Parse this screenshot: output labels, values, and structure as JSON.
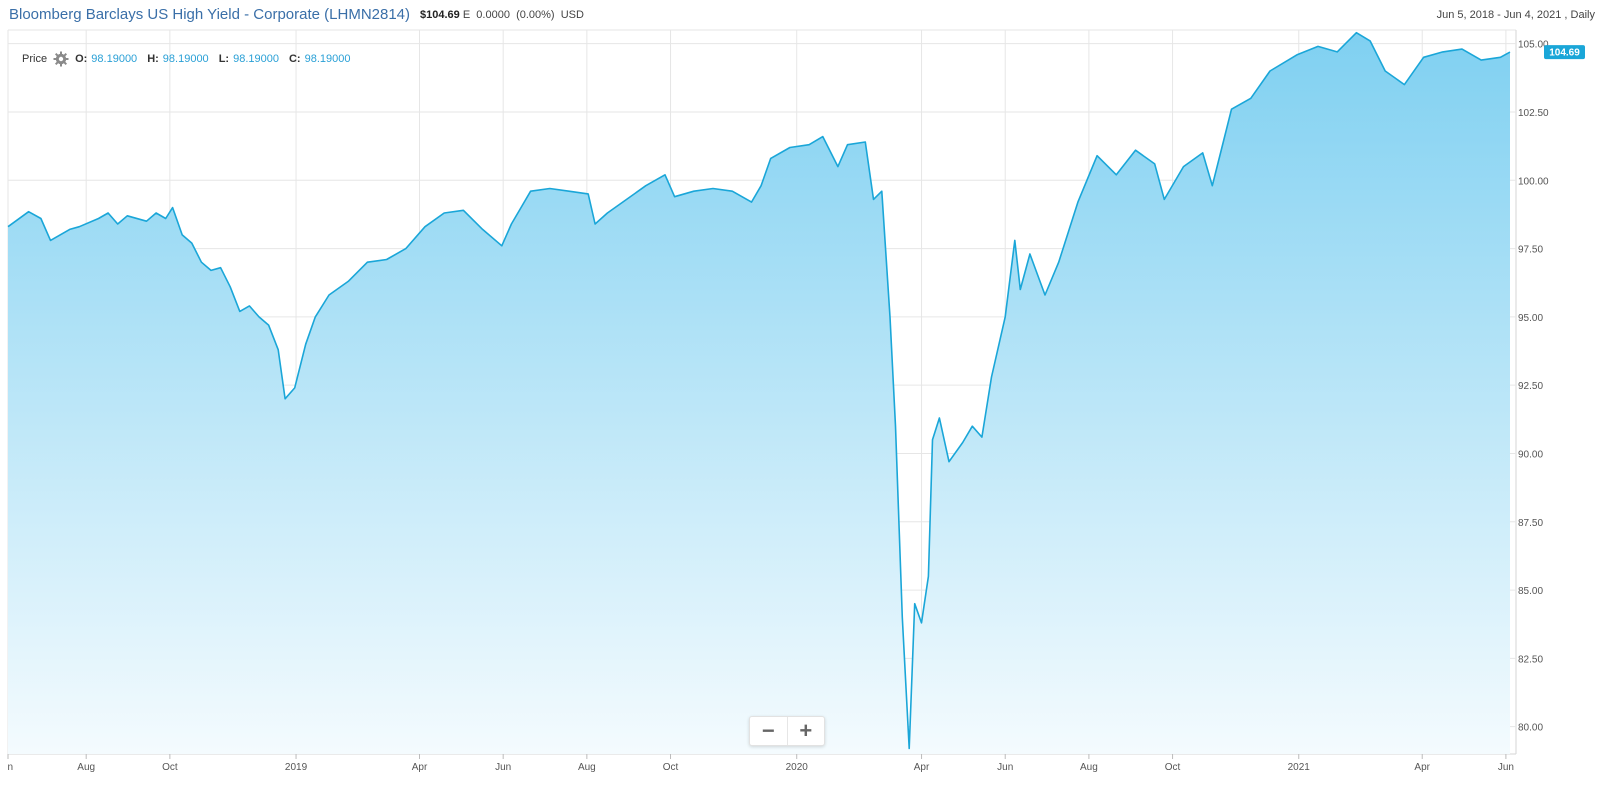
{
  "header": {
    "title": "Bloomberg Barclays US High Yield - Corporate",
    "ticker": "(LHMN2814)",
    "price": "$104.69",
    "price_flag": "E",
    "change": "0.0000",
    "change_pct": "(0.00%)",
    "currency": "USD",
    "date_range": "Jun 5, 2018 - Jun 4, 2021 , Daily"
  },
  "ohlc": {
    "series_label": "Price",
    "open_label": "O:",
    "open": "98.19000",
    "high_label": "H:",
    "high": "98.19000",
    "low_label": "L:",
    "low": "98.19000",
    "close_label": "C:",
    "close": "98.19000",
    "settings_icon": "gear-icon"
  },
  "last_value_label": "104.69",
  "zoom": {
    "out_label": "−",
    "in_label": "+"
  },
  "colors": {
    "line": "#1aa6d8",
    "fill_top": "#7fd0f1",
    "fill_bottom": "#f4fbfe",
    "title": "#3a6fa8",
    "badge": "#1aa6d8"
  },
  "chart_data": {
    "type": "area",
    "title": "Bloomberg Barclays US High Yield - Corporate",
    "xlabel": "",
    "ylabel": "",
    "y_axis_position": "right",
    "ylim": [
      79,
      105.5
    ],
    "yticks": [
      "80.00",
      "82.50",
      "85.00",
      "87.50",
      "90.00",
      "92.50",
      "95.00",
      "97.50",
      "100.00",
      "102.50",
      "105.00"
    ],
    "xlim": [
      "2018-06-05",
      "2021-06-04"
    ],
    "xticks": [
      {
        "date": "2018-06-01",
        "label": "n"
      },
      {
        "date": "2018-08-01",
        "label": "Aug"
      },
      {
        "date": "2018-10-01",
        "label": "Oct"
      },
      {
        "date": "2019-01-01",
        "label": "2019"
      },
      {
        "date": "2019-04-01",
        "label": "Apr"
      },
      {
        "date": "2019-06-01",
        "label": "Jun"
      },
      {
        "date": "2019-08-01",
        "label": "Aug"
      },
      {
        "date": "2019-10-01",
        "label": "Oct"
      },
      {
        "date": "2020-01-01",
        "label": "2020"
      },
      {
        "date": "2020-04-01",
        "label": "Apr"
      },
      {
        "date": "2020-06-01",
        "label": "Jun"
      },
      {
        "date": "2020-08-01",
        "label": "Aug"
      },
      {
        "date": "2020-10-01",
        "label": "Oct"
      },
      {
        "date": "2021-01-01",
        "label": "2021"
      },
      {
        "date": "2021-04-01",
        "label": "Apr"
      },
      {
        "date": "2021-06-01",
        "label": "Jun"
      }
    ],
    "grid": true,
    "series": [
      {
        "points": [
          [
            "2018-06-05",
            98.3
          ],
          [
            "2018-06-20",
            98.85
          ],
          [
            "2018-06-29",
            98.6
          ],
          [
            "2018-07-06",
            97.8
          ],
          [
            "2018-07-13",
            98.0
          ],
          [
            "2018-07-20",
            98.2
          ],
          [
            "2018-07-27",
            98.3
          ],
          [
            "2018-08-10",
            98.6
          ],
          [
            "2018-08-17",
            98.8
          ],
          [
            "2018-08-24",
            98.4
          ],
          [
            "2018-08-31",
            98.7
          ],
          [
            "2018-09-14",
            98.5
          ],
          [
            "2018-09-21",
            98.8
          ],
          [
            "2018-09-28",
            98.6
          ],
          [
            "2018-10-03",
            99.0
          ],
          [
            "2018-10-10",
            98.0
          ],
          [
            "2018-10-17",
            97.7
          ],
          [
            "2018-10-24",
            97.0
          ],
          [
            "2018-10-31",
            96.7
          ],
          [
            "2018-11-07",
            96.8
          ],
          [
            "2018-11-14",
            96.1
          ],
          [
            "2018-11-21",
            95.2
          ],
          [
            "2018-11-28",
            95.4
          ],
          [
            "2018-12-05",
            95.0
          ],
          [
            "2018-12-12",
            94.7
          ],
          [
            "2018-12-19",
            93.8
          ],
          [
            "2018-12-24",
            92.0
          ],
          [
            "2018-12-31",
            92.4
          ],
          [
            "2019-01-08",
            94.0
          ],
          [
            "2019-01-15",
            95.0
          ],
          [
            "2019-01-25",
            95.8
          ],
          [
            "2019-02-08",
            96.3
          ],
          [
            "2019-02-22",
            97.0
          ],
          [
            "2019-03-08",
            97.1
          ],
          [
            "2019-03-22",
            97.5
          ],
          [
            "2019-04-05",
            98.3
          ],
          [
            "2019-04-19",
            98.8
          ],
          [
            "2019-05-03",
            98.9
          ],
          [
            "2019-05-17",
            98.2
          ],
          [
            "2019-05-31",
            97.6
          ],
          [
            "2019-06-07",
            98.4
          ],
          [
            "2019-06-14",
            99.0
          ],
          [
            "2019-06-21",
            99.6
          ],
          [
            "2019-07-05",
            99.7
          ],
          [
            "2019-07-19",
            99.6
          ],
          [
            "2019-08-02",
            99.5
          ],
          [
            "2019-08-07",
            98.4
          ],
          [
            "2019-08-16",
            98.8
          ],
          [
            "2019-08-30",
            99.3
          ],
          [
            "2019-09-13",
            99.8
          ],
          [
            "2019-09-27",
            100.2
          ],
          [
            "2019-10-04",
            99.4
          ],
          [
            "2019-10-18",
            99.6
          ],
          [
            "2019-11-01",
            99.7
          ],
          [
            "2019-11-15",
            99.6
          ],
          [
            "2019-11-29",
            99.2
          ],
          [
            "2019-12-06",
            99.8
          ],
          [
            "2019-12-13",
            100.8
          ],
          [
            "2019-12-27",
            101.2
          ],
          [
            "2020-01-10",
            101.3
          ],
          [
            "2020-01-20",
            101.6
          ],
          [
            "2020-01-31",
            100.5
          ],
          [
            "2020-02-07",
            101.3
          ],
          [
            "2020-02-20",
            101.4
          ],
          [
            "2020-02-26",
            99.3
          ],
          [
            "2020-03-03",
            99.6
          ],
          [
            "2020-03-09",
            95.0
          ],
          [
            "2020-03-13",
            91.0
          ],
          [
            "2020-03-18",
            84.0
          ],
          [
            "2020-03-23",
            79.2
          ],
          [
            "2020-03-27",
            84.5
          ],
          [
            "2020-04-01",
            83.8
          ],
          [
            "2020-04-06",
            85.5
          ],
          [
            "2020-04-09",
            90.5
          ],
          [
            "2020-04-14",
            91.3
          ],
          [
            "2020-04-21",
            89.7
          ],
          [
            "2020-05-01",
            90.4
          ],
          [
            "2020-05-08",
            91.0
          ],
          [
            "2020-05-15",
            90.6
          ],
          [
            "2020-05-22",
            92.8
          ],
          [
            "2020-06-01",
            95.0
          ],
          [
            "2020-06-08",
            97.8
          ],
          [
            "2020-06-12",
            96.0
          ],
          [
            "2020-06-19",
            97.3
          ],
          [
            "2020-06-30",
            95.8
          ],
          [
            "2020-07-10",
            97.0
          ],
          [
            "2020-07-24",
            99.2
          ],
          [
            "2020-08-07",
            100.9
          ],
          [
            "2020-08-21",
            100.2
          ],
          [
            "2020-09-04",
            101.1
          ],
          [
            "2020-09-18",
            100.6
          ],
          [
            "2020-09-25",
            99.3
          ],
          [
            "2020-10-09",
            100.5
          ],
          [
            "2020-10-23",
            101.0
          ],
          [
            "2020-10-30",
            99.8
          ],
          [
            "2020-11-06",
            101.2
          ],
          [
            "2020-11-13",
            102.6
          ],
          [
            "2020-11-27",
            103.0
          ],
          [
            "2020-12-11",
            104.0
          ],
          [
            "2020-12-31",
            104.6
          ],
          [
            "2021-01-15",
            104.9
          ],
          [
            "2021-01-29",
            104.7
          ],
          [
            "2021-02-12",
            105.4
          ],
          [
            "2021-02-22",
            105.1
          ],
          [
            "2021-03-05",
            104.0
          ],
          [
            "2021-03-19",
            103.5
          ],
          [
            "2021-04-02",
            104.5
          ],
          [
            "2021-04-16",
            104.7
          ],
          [
            "2021-04-30",
            104.8
          ],
          [
            "2021-05-14",
            104.4
          ],
          [
            "2021-05-28",
            104.5
          ],
          [
            "2021-06-04",
            104.69
          ]
        ]
      }
    ]
  }
}
